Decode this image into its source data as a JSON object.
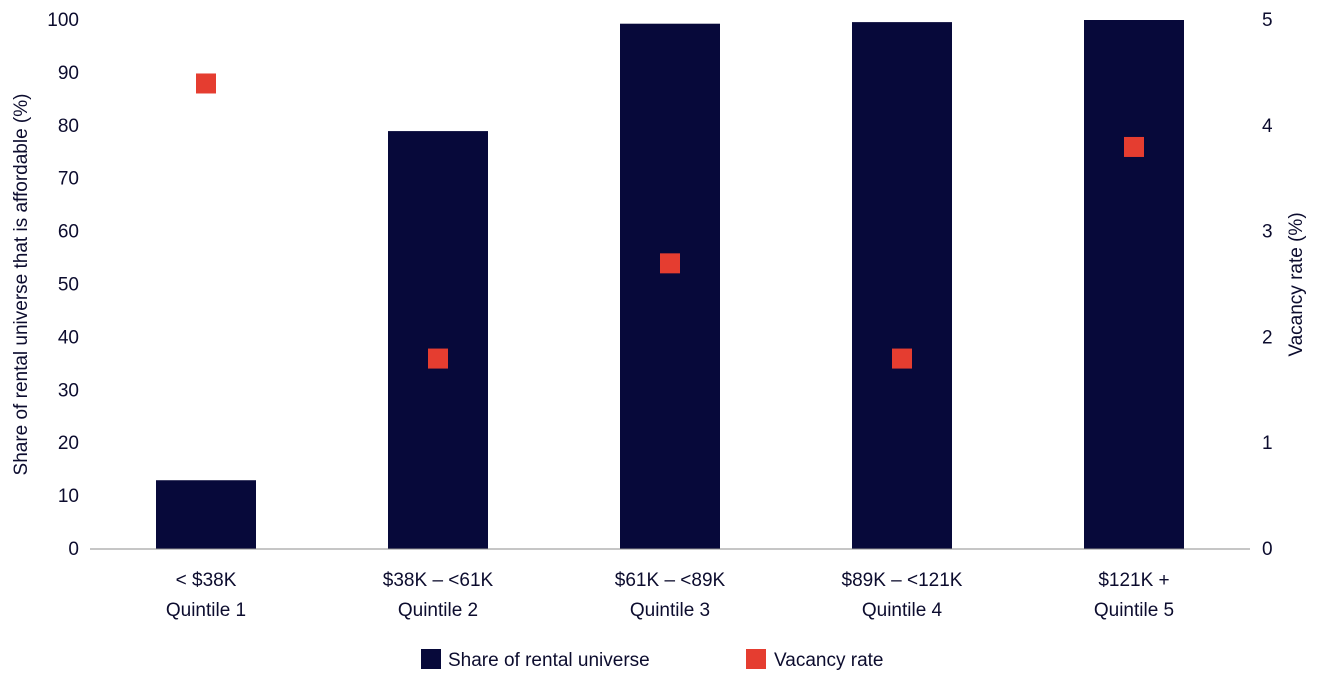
{
  "chart_data": {
    "type": "bar",
    "categories": [
      [
        "< $38K",
        "Quintile 1"
      ],
      [
        "$38K – <61K",
        "Quintile 2"
      ],
      [
        "$61K – <89K",
        "Quintile 3"
      ],
      [
        "$89K – <121K",
        "Quintile 4"
      ],
      [
        "$121K +",
        "Quintile 5"
      ]
    ],
    "series": [
      {
        "name": "Share of rental universe",
        "type": "bar",
        "axis": "left",
        "color": "#07093a",
        "values": [
          13,
          79,
          99.3,
          99.6,
          100
        ]
      },
      {
        "name": "Vacancy rate",
        "type": "scatter",
        "axis": "right",
        "color": "#e53d30",
        "marker": "square",
        "values": [
          4.4,
          1.8,
          2.7,
          1.8,
          3.8
        ]
      }
    ],
    "y_left": {
      "label": "Share of rental universe that is affordable (%)",
      "range": [
        0,
        100
      ],
      "ticks": [
        "0",
        "10",
        "20",
        "30",
        "40",
        "50",
        "60",
        "70",
        "80",
        "90",
        "100"
      ]
    },
    "y_right": {
      "label": "Vacancy rate (%)",
      "range": [
        0,
        5
      ],
      "ticks": [
        "0",
        "1",
        "2",
        "3",
        "4",
        "5"
      ]
    },
    "grid": false,
    "legend_position": "bottom-center"
  }
}
